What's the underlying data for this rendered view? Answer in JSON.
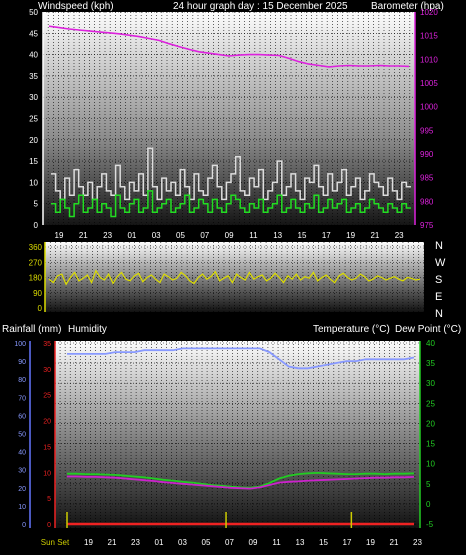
{
  "header": {
    "left": "Windspeed (kph)",
    "center": "24 hour graph day : 15 December 2025",
    "right": "Barometer (hpa)"
  },
  "mid_header": {
    "left": "Rainfall (mm)",
    "left2": "Humidity",
    "right": "Temperature (°C)",
    "right2": "Dew Point (°C)"
  },
  "compass_labels": [
    "N",
    "W",
    "S",
    "E",
    "N"
  ],
  "colors": {
    "wind_avg": "#22dd22",
    "wind_gust": "#dddddd",
    "barometer": "#dd22dd",
    "direction": "#dddd00",
    "humidity": "#8899ff",
    "temperature": "#22cc22",
    "dewpoint": "#cc22cc",
    "rain": "#ee2222",
    "sun": "#cccc00",
    "grid": "#000000"
  },
  "chart_data": [
    {
      "type": "line",
      "name": "wind-barometer",
      "x_tick_labels": [
        "19",
        "21",
        "23",
        "01",
        "03",
        "05",
        "07",
        "09",
        "11",
        "13",
        "15",
        "17",
        "19",
        "21",
        "23"
      ],
      "left_axis": {
        "ylim": [
          0,
          50
        ],
        "ticks": [
          0,
          5,
          10,
          15,
          20,
          25,
          30,
          35,
          40,
          45,
          50
        ]
      },
      "right_axis": {
        "ylim": [
          975,
          1020
        ],
        "ticks": [
          975,
          980,
          985,
          990,
          995,
          1000,
          1005,
          1010,
          1015,
          1020
        ]
      },
      "series": [
        {
          "name": "Barometer",
          "axis": "right",
          "points": [
            [
              0,
              1017
            ],
            [
              1,
              1016.7
            ],
            [
              2,
              1016.4
            ],
            [
              3,
              1016.2
            ],
            [
              4,
              1016
            ],
            [
              5,
              1015.8
            ],
            [
              6,
              1015.6
            ],
            [
              7,
              1015.4
            ],
            [
              8,
              1015.1
            ],
            [
              9,
              1014.8
            ],
            [
              10,
              1014.4
            ],
            [
              11,
              1014
            ],
            [
              12,
              1013.3
            ],
            [
              13,
              1012.7
            ],
            [
              14,
              1012.1
            ],
            [
              15,
              1011.6
            ],
            [
              16,
              1011.3
            ],
            [
              17,
              1011
            ],
            [
              18,
              1010.7
            ],
            [
              19,
              1010.9
            ],
            [
              20,
              1011
            ],
            [
              21,
              1011
            ],
            [
              22,
              1010.9
            ],
            [
              23,
              1010.8
            ],
            [
              24,
              1010.2
            ],
            [
              25,
              1009.5
            ],
            [
              26,
              1009
            ],
            [
              27,
              1008.7
            ],
            [
              28,
              1008.4
            ],
            [
              29,
              1008.6
            ],
            [
              30,
              1008.7
            ],
            [
              31,
              1008.6
            ],
            [
              32,
              1008.6
            ],
            [
              33,
              1008.7
            ],
            [
              34,
              1008.6
            ],
            [
              35,
              1008.6
            ],
            [
              36,
              1008.5
            ]
          ]
        },
        {
          "name": "Gust",
          "axis": "left",
          "values": [
            12,
            8,
            6,
            11,
            7,
            13,
            9,
            7,
            10,
            6,
            9,
            12,
            8,
            7,
            14,
            9,
            6,
            10,
            8,
            12,
            7,
            18,
            9,
            6,
            11,
            8,
            10,
            7,
            13,
            9,
            6,
            12,
            8,
            7,
            11,
            14,
            9,
            6,
            10,
            12,
            16,
            8,
            7,
            11,
            9,
            13,
            6,
            8,
            10,
            15,
            7,
            9,
            12,
            8,
            6,
            11,
            10,
            14,
            9,
            7,
            12,
            8,
            10,
            13,
            7,
            9,
            11,
            6,
            8,
            12,
            10,
            9,
            7,
            11,
            8,
            6,
            10,
            9
          ]
        },
        {
          "name": "Average",
          "axis": "left",
          "values": [
            5,
            3,
            6,
            4,
            2,
            5,
            7,
            3,
            4,
            6,
            3,
            5,
            4,
            2,
            7,
            4,
            3,
            5,
            6,
            3,
            4,
            8,
            3,
            4,
            5,
            6,
            3,
            4,
            5,
            7,
            3,
            4,
            6,
            5,
            3,
            6,
            4,
            3,
            5,
            7,
            6,
            4,
            3,
            5,
            4,
            6,
            3,
            4,
            5,
            7,
            3,
            4,
            6,
            4,
            3,
            5,
            4,
            7,
            3,
            4,
            6,
            4,
            5,
            6,
            3,
            4,
            5,
            3,
            4,
            6,
            5,
            4,
            3,
            5,
            4,
            3,
            5,
            4
          ]
        }
      ]
    },
    {
      "type": "line",
      "name": "wind-direction",
      "left_axis": {
        "ylim": [
          0,
          360
        ],
        "ticks": [
          0,
          90,
          180,
          270,
          360
        ]
      },
      "series": [
        {
          "name": "Direction",
          "values": [
            170,
            150,
            190,
            200,
            140,
            180,
            210,
            160,
            175,
            195,
            150,
            220,
            180,
            165,
            200,
            145,
            185,
            210,
            170,
            160,
            190,
            205,
            155,
            180,
            195,
            170,
            150,
            200,
            185,
            165,
            175,
            210,
            190,
            160,
            145,
            180,
            200,
            170,
            185,
            215,
            160,
            175,
            190,
            150,
            200,
            180,
            165,
            210,
            170,
            185,
            195,
            160,
            175,
            205,
            180,
            150,
            190,
            170,
            200,
            165,
            185,
            175,
            210,
            160,
            180,
            195,
            170,
            150,
            190,
            205,
            180,
            165,
            175,
            200,
            185,
            160,
            170,
            190,
            180,
            165,
            175,
            185,
            170,
            160,
            180,
            175,
            165,
            170
          ]
        }
      ]
    },
    {
      "type": "line",
      "name": "temp-humidity-rain",
      "x_tick_labels": [
        "Sun Set",
        "19",
        "21",
        "23",
        "01",
        "03",
        "05",
        "07",
        "09",
        "11",
        "13",
        "15",
        "17",
        "19",
        "21",
        "23"
      ],
      "humidity_axis": {
        "ylim": [
          0,
          100
        ],
        "ticks": [
          0,
          10,
          20,
          30,
          40,
          50,
          60,
          70,
          80,
          90,
          100
        ]
      },
      "rain_axis": {
        "ylim": [
          0,
          35
        ],
        "ticks": [
          0,
          5,
          10,
          15,
          20,
          25,
          30,
          35
        ]
      },
      "temp_axis": {
        "ylim": [
          -5,
          40
        ],
        "ticks": [
          -5,
          0,
          5,
          10,
          15,
          20,
          25,
          30,
          35,
          40
        ]
      },
      "series": [
        {
          "name": "Humidity",
          "axis": "humidity",
          "points": [
            [
              0,
              94
            ],
            [
              1,
              94
            ],
            [
              2,
              94
            ],
            [
              3,
              94
            ],
            [
              4,
              94
            ],
            [
              5,
              95
            ],
            [
              6,
              95
            ],
            [
              7,
              95
            ],
            [
              8,
              96
            ],
            [
              9,
              96
            ],
            [
              10,
              96
            ],
            [
              11,
              96
            ],
            [
              12,
              97
            ],
            [
              13,
              97
            ],
            [
              14,
              97
            ],
            [
              15,
              97
            ],
            [
              16,
              97
            ],
            [
              17,
              97
            ],
            [
              18,
              97
            ],
            [
              19,
              97
            ],
            [
              20,
              97
            ],
            [
              21,
              95
            ],
            [
              22,
              91
            ],
            [
              23,
              87
            ],
            [
              24,
              86
            ],
            [
              25,
              86
            ],
            [
              26,
              87
            ],
            [
              27,
              88
            ],
            [
              28,
              89
            ],
            [
              29,
              90
            ],
            [
              30,
              90
            ],
            [
              31,
              91
            ],
            [
              32,
              91
            ],
            [
              33,
              91
            ],
            [
              34,
              91
            ],
            [
              35,
              91
            ],
            [
              36,
              92
            ]
          ]
        },
        {
          "name": "Temperature",
          "axis": "temp",
          "points": [
            [
              0,
              7.5
            ],
            [
              1,
              7.5
            ],
            [
              2,
              7.4
            ],
            [
              3,
              7.4
            ],
            [
              4,
              7.3
            ],
            [
              5,
              7.2
            ],
            [
              6,
              7
            ],
            [
              7,
              6.8
            ],
            [
              8,
              6.6
            ],
            [
              9,
              6.3
            ],
            [
              10,
              6
            ],
            [
              11,
              5.8
            ],
            [
              12,
              5.5
            ],
            [
              13,
              5.3
            ],
            [
              14,
              5
            ],
            [
              15,
              4.7
            ],
            [
              16,
              4.5
            ],
            [
              17,
              4.3
            ],
            [
              18,
              4.1
            ],
            [
              19,
              4
            ],
            [
              20,
              4.3
            ],
            [
              21,
              5.2
            ],
            [
              22,
              6.3
            ],
            [
              23,
              7
            ],
            [
              24,
              7.4
            ],
            [
              25,
              7.6
            ],
            [
              26,
              7.7
            ],
            [
              27,
              7.6
            ],
            [
              28,
              7.5
            ],
            [
              29,
              7.4
            ],
            [
              30,
              7.4
            ],
            [
              31,
              7.5
            ],
            [
              32,
              7.5
            ],
            [
              33,
              7.4
            ],
            [
              34,
              7.5
            ],
            [
              35,
              7.5
            ],
            [
              36,
              7.6
            ]
          ]
        },
        {
          "name": "Dew Point",
          "axis": "temp",
          "points": [
            [
              0,
              6.8
            ],
            [
              1,
              6.8
            ],
            [
              2,
              6.7
            ],
            [
              3,
              6.7
            ],
            [
              4,
              6.6
            ],
            [
              5,
              6.5
            ],
            [
              6,
              6.3
            ],
            [
              7,
              6.1
            ],
            [
              8,
              5.9
            ],
            [
              9,
              5.7
            ],
            [
              10,
              5.4
            ],
            [
              11,
              5.2
            ],
            [
              12,
              5
            ],
            [
              13,
              4.8
            ],
            [
              14,
              4.6
            ],
            [
              15,
              4.4
            ],
            [
              16,
              4.2
            ],
            [
              17,
              4
            ],
            [
              18,
              3.9
            ],
            [
              19,
              3.8
            ],
            [
              20,
              4.1
            ],
            [
              21,
              4.7
            ],
            [
              22,
              5.3
            ],
            [
              23,
              5.5
            ],
            [
              24,
              5.6
            ],
            [
              25,
              5.8
            ],
            [
              26,
              5.9
            ],
            [
              27,
              6
            ],
            [
              28,
              6.1
            ],
            [
              29,
              6.2
            ],
            [
              30,
              6.3
            ],
            [
              31,
              6.4
            ],
            [
              32,
              6.5
            ],
            [
              33,
              6.5
            ],
            [
              34,
              6.6
            ],
            [
              35,
              6.6
            ],
            [
              36,
              6.7
            ]
          ]
        },
        {
          "name": "Rainfall",
          "axis": "rain",
          "points": [
            [
              0,
              0
            ],
            [
              36,
              0
            ]
          ]
        }
      ],
      "sun_markers": [
        0,
        16.5,
        29.5
      ]
    }
  ]
}
